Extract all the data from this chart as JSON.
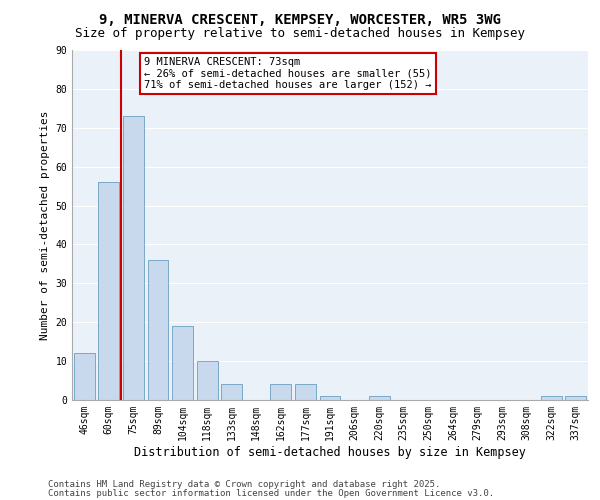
{
  "title1": "9, MINERVA CRESCENT, KEMPSEY, WORCESTER, WR5 3WG",
  "title2": "Size of property relative to semi-detached houses in Kempsey",
  "xlabel": "Distribution of semi-detached houses by size in Kempsey",
  "ylabel": "Number of semi-detached properties",
  "categories": [
    "46sqm",
    "60sqm",
    "75sqm",
    "89sqm",
    "104sqm",
    "118sqm",
    "133sqm",
    "148sqm",
    "162sqm",
    "177sqm",
    "191sqm",
    "206sqm",
    "220sqm",
    "235sqm",
    "250sqm",
    "264sqm",
    "279sqm",
    "293sqm",
    "308sqm",
    "322sqm",
    "337sqm"
  ],
  "values": [
    12,
    56,
    73,
    36,
    19,
    10,
    4,
    0,
    4,
    4,
    1,
    0,
    1,
    0,
    0,
    0,
    0,
    0,
    0,
    1,
    1
  ],
  "bar_color": "#c8d9ed",
  "bar_edge_color": "#6a9fc0",
  "red_line_x": 1.5,
  "annotation_title": "9 MINERVA CRESCENT: 73sqm",
  "annotation_line1": "← 26% of semi-detached houses are smaller (55)",
  "annotation_line2": "71% of semi-detached houses are larger (152) →",
  "annotation_box_color": "#ffffff",
  "annotation_box_edge": "#cc0000",
  "red_line_color": "#cc0000",
  "ylim": [
    0,
    90
  ],
  "yticks": [
    0,
    10,
    20,
    30,
    40,
    50,
    60,
    70,
    80,
    90
  ],
  "footer1": "Contains HM Land Registry data © Crown copyright and database right 2025.",
  "footer2": "Contains public sector information licensed under the Open Government Licence v3.0.",
  "bg_color": "#eaf1f8",
  "grid_color": "#ffffff",
  "title1_fontsize": 10,
  "title2_fontsize": 9,
  "xlabel_fontsize": 8.5,
  "ylabel_fontsize": 8,
  "tick_fontsize": 7,
  "footer_fontsize": 6.5,
  "ann_fontsize": 7.5
}
